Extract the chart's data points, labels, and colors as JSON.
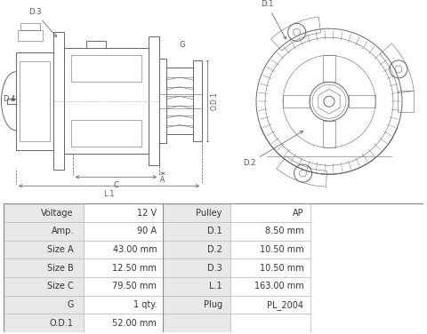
{
  "bg_color": "#ffffff",
  "diagram_bg": "#f0eeeb",
  "table_bg_label": "#e8e8e8",
  "table_bg_value": "#ffffff",
  "table_border_color": "#bbbbbb",
  "line_color": "#666666",
  "dim_color": "#555555",
  "table_data": [
    [
      "Voltage",
      "12 V",
      "Pulley",
      "AP"
    ],
    [
      "Amp.",
      "90 A",
      "D.1",
      "8.50 mm"
    ],
    [
      "Size A",
      "43.00 mm",
      "D.2",
      "10.50 mm"
    ],
    [
      "Size B",
      "12.50 mm",
      "D.3",
      "10.50 mm"
    ],
    [
      "Size C",
      "79.50 mm",
      "L.1",
      "163.00 mm"
    ],
    [
      "G",
      "1 qty.",
      "Plug",
      "PL_2004"
    ],
    [
      "O.D.1",
      "52.00 mm",
      "",
      ""
    ]
  ],
  "col_bounds": [
    0.0,
    0.19,
    0.38,
    0.54,
    0.73,
    1.0
  ],
  "font_size_table": 7.0,
  "diagram_split": 0.395
}
